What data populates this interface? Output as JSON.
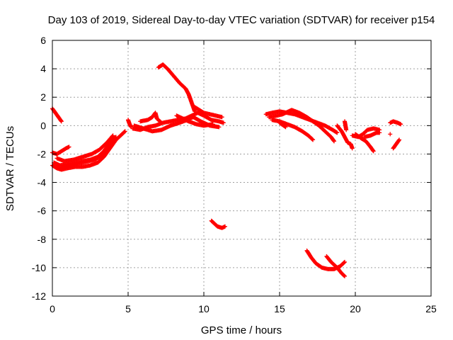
{
  "chart_data": {
    "type": "scatter",
    "title": "Day 103 of 2019, Sidereal Day-to-day VTEC variation (SDTVAR) for receiver p154",
    "xlabel": "GPS time / hours",
    "ylabel": "SDTVAR / TECUs",
    "xlim": [
      0,
      25
    ],
    "ylim": [
      -12,
      6
    ],
    "xticks": [
      "0",
      "5",
      "10",
      "15",
      "20",
      "25"
    ],
    "yticks": [
      "6",
      "4",
      "2",
      "0",
      "-2",
      "-4",
      "-6",
      "-8",
      "-10",
      "-12"
    ],
    "grid": true,
    "marker": "plus",
    "color": "#ff0000",
    "segments": [
      [
        [
          0.0,
          1.2
        ],
        [
          0.2,
          0.9
        ],
        [
          0.4,
          0.6
        ],
        [
          0.6,
          0.3
        ]
      ],
      [
        [
          0.0,
          -1.9
        ],
        [
          0.3,
          -2.0
        ],
        [
          0.6,
          -1.8
        ],
        [
          0.9,
          -1.6
        ],
        [
          1.1,
          -1.5
        ]
      ],
      [
        [
          0.0,
          -2.8
        ],
        [
          0.3,
          -3.0
        ],
        [
          0.6,
          -3.1
        ],
        [
          1.0,
          -3.0
        ],
        [
          1.5,
          -2.9
        ],
        [
          2.0,
          -2.9
        ],
        [
          2.5,
          -2.8
        ],
        [
          3.0,
          -2.6
        ],
        [
          3.4,
          -2.2
        ],
        [
          3.8,
          -1.6
        ],
        [
          4.2,
          -1.0
        ],
        [
          4.6,
          -0.6
        ],
        [
          4.8,
          -0.4
        ]
      ],
      [
        [
          0.1,
          -2.6
        ],
        [
          0.5,
          -2.8
        ],
        [
          1.0,
          -2.7
        ],
        [
          1.5,
          -2.6
        ],
        [
          2.0,
          -2.5
        ],
        [
          2.5,
          -2.4
        ],
        [
          3.0,
          -2.2
        ],
        [
          3.4,
          -1.8
        ],
        [
          3.8,
          -1.2
        ],
        [
          4.2,
          -0.8
        ]
      ],
      [
        [
          0.3,
          -2.3
        ],
        [
          0.8,
          -2.5
        ],
        [
          1.4,
          -2.4
        ],
        [
          2.0,
          -2.2
        ],
        [
          2.6,
          -2.0
        ],
        [
          3.1,
          -1.7
        ],
        [
          3.6,
          -1.2
        ],
        [
          4.0,
          -0.7
        ]
      ],
      [
        [
          0.5,
          -3.0
        ],
        [
          1.2,
          -2.8
        ],
        [
          2.0,
          -2.6
        ],
        [
          2.8,
          -2.4
        ],
        [
          3.4,
          -2.0
        ],
        [
          3.9,
          -1.4
        ]
      ],
      [
        [
          5.0,
          0.4
        ],
        [
          5.1,
          0.1
        ],
        [
          5.2,
          -0.1
        ]
      ],
      [
        [
          5.3,
          -0.2
        ],
        [
          5.8,
          -0.3
        ],
        [
          6.3,
          -0.1
        ],
        [
          6.8,
          0.0
        ],
        [
          7.3,
          0.2
        ],
        [
          7.8,
          0.3
        ],
        [
          8.3,
          0.4
        ],
        [
          8.8,
          0.5
        ],
        [
          9.2,
          0.7
        ],
        [
          9.6,
          0.9
        ],
        [
          10.0,
          0.7
        ],
        [
          10.5,
          0.4
        ],
        [
          11.0,
          0.3
        ],
        [
          11.3,
          0.2
        ]
      ],
      [
        [
          5.4,
          0.0
        ],
        [
          6.0,
          -0.2
        ],
        [
          6.6,
          -0.4
        ],
        [
          7.2,
          -0.3
        ],
        [
          7.8,
          0.0
        ],
        [
          8.4,
          0.2
        ],
        [
          8.9,
          0.4
        ],
        [
          9.3,
          0.6
        ],
        [
          9.8,
          0.3
        ],
        [
          10.4,
          0.0
        ],
        [
          11.0,
          -0.1
        ]
      ],
      [
        [
          5.8,
          0.3
        ],
        [
          6.3,
          0.4
        ],
        [
          6.6,
          0.6
        ],
        [
          6.8,
          0.9
        ],
        [
          6.9,
          0.5
        ],
        [
          7.2,
          0.2
        ]
      ],
      [
        [
          8.2,
          0.7
        ],
        [
          8.6,
          0.5
        ],
        [
          9.0,
          0.3
        ],
        [
          9.5,
          0.1
        ],
        [
          10.0,
          0.0
        ],
        [
          10.6,
          0.1
        ]
      ],
      [
        [
          7.0,
          4.1
        ],
        [
          7.3,
          4.3
        ],
        [
          7.6,
          4.0
        ],
        [
          8.0,
          3.5
        ],
        [
          8.4,
          3.0
        ],
        [
          8.8,
          2.6
        ],
        [
          9.0,
          2.2
        ],
        [
          9.2,
          1.6
        ],
        [
          9.4,
          1.0
        ]
      ],
      [
        [
          9.4,
          1.3
        ],
        [
          9.7,
          1.1
        ],
        [
          10.0,
          0.9
        ],
        [
          10.4,
          0.8
        ],
        [
          10.8,
          0.7
        ],
        [
          11.2,
          0.6
        ]
      ],
      [
        [
          10.5,
          -6.7
        ],
        [
          10.7,
          -6.9
        ],
        [
          10.9,
          -7.1
        ],
        [
          11.2,
          -7.2
        ],
        [
          11.4,
          -7.1
        ]
      ],
      [
        [
          14.1,
          0.8
        ],
        [
          14.5,
          0.9
        ],
        [
          15.0,
          1.0
        ],
        [
          15.5,
          0.9
        ],
        [
          16.0,
          0.8
        ],
        [
          16.5,
          0.6
        ],
        [
          17.0,
          0.4
        ],
        [
          17.5,
          0.2
        ],
        [
          18.0,
          0.0
        ],
        [
          18.5,
          -0.3
        ],
        [
          18.8,
          -0.5
        ]
      ],
      [
        [
          14.3,
          0.6
        ],
        [
          14.8,
          0.7
        ],
        [
          15.2,
          0.8
        ],
        [
          15.8,
          1.1
        ],
        [
          16.3,
          0.9
        ],
        [
          16.8,
          0.6
        ],
        [
          17.2,
          0.3
        ],
        [
          17.6,
          0.0
        ],
        [
          18.0,
          -0.4
        ],
        [
          18.4,
          -0.8
        ],
        [
          18.6,
          -1.1
        ]
      ],
      [
        [
          14.5,
          0.4
        ],
        [
          15.0,
          0.3
        ],
        [
          15.5,
          0.1
        ],
        [
          16.0,
          -0.1
        ],
        [
          16.5,
          -0.4
        ],
        [
          16.9,
          -0.7
        ],
        [
          17.2,
          -1.0
        ]
      ],
      [
        [
          15.0,
          0.2
        ],
        [
          15.4,
          -0.1
        ]
      ],
      [
        [
          18.8,
          0.0
        ],
        [
          19.1,
          -0.4
        ],
        [
          19.3,
          -0.8
        ],
        [
          19.5,
          -1.2
        ],
        [
          19.7,
          -1.3
        ],
        [
          19.8,
          -1.6
        ]
      ],
      [
        [
          19.3,
          0.3
        ],
        [
          19.4,
          -0.3
        ]
      ],
      [
        [
          19.8,
          -0.7
        ],
        [
          20.2,
          -0.8
        ],
        [
          20.5,
          -0.6
        ],
        [
          20.8,
          -0.3
        ],
        [
          21.2,
          -0.2
        ],
        [
          21.6,
          -0.3
        ]
      ],
      [
        [
          20.0,
          -0.6
        ],
        [
          20.4,
          -0.9
        ],
        [
          20.7,
          -1.1
        ],
        [
          21.0,
          -1.5
        ],
        [
          21.2,
          -1.8
        ]
      ],
      [
        [
          20.6,
          -0.8
        ],
        [
          21.0,
          -0.7
        ],
        [
          21.4,
          -0.5
        ],
        [
          21.6,
          -0.5
        ]
      ],
      [
        [
          22.3,
          0.2
        ],
        [
          22.5,
          0.3
        ],
        [
          22.8,
          0.2
        ],
        [
          23.0,
          0.1
        ]
      ],
      [
        [
          22.3,
          -0.6
        ]
      ],
      [
        [
          22.5,
          -1.6
        ],
        [
          22.7,
          -1.3
        ],
        [
          22.9,
          -1.0
        ]
      ],
      [
        [
          16.8,
          -8.8
        ],
        [
          17.1,
          -9.3
        ],
        [
          17.4,
          -9.7
        ],
        [
          17.8,
          -10.0
        ],
        [
          18.2,
          -10.1
        ],
        [
          18.6,
          -10.1
        ],
        [
          19.0,
          -9.9
        ],
        [
          19.3,
          -9.6
        ]
      ],
      [
        [
          18.1,
          -9.2
        ],
        [
          18.4,
          -9.6
        ],
        [
          18.8,
          -10.0
        ],
        [
          19.1,
          -10.4
        ],
        [
          19.3,
          -10.6
        ]
      ]
    ]
  }
}
